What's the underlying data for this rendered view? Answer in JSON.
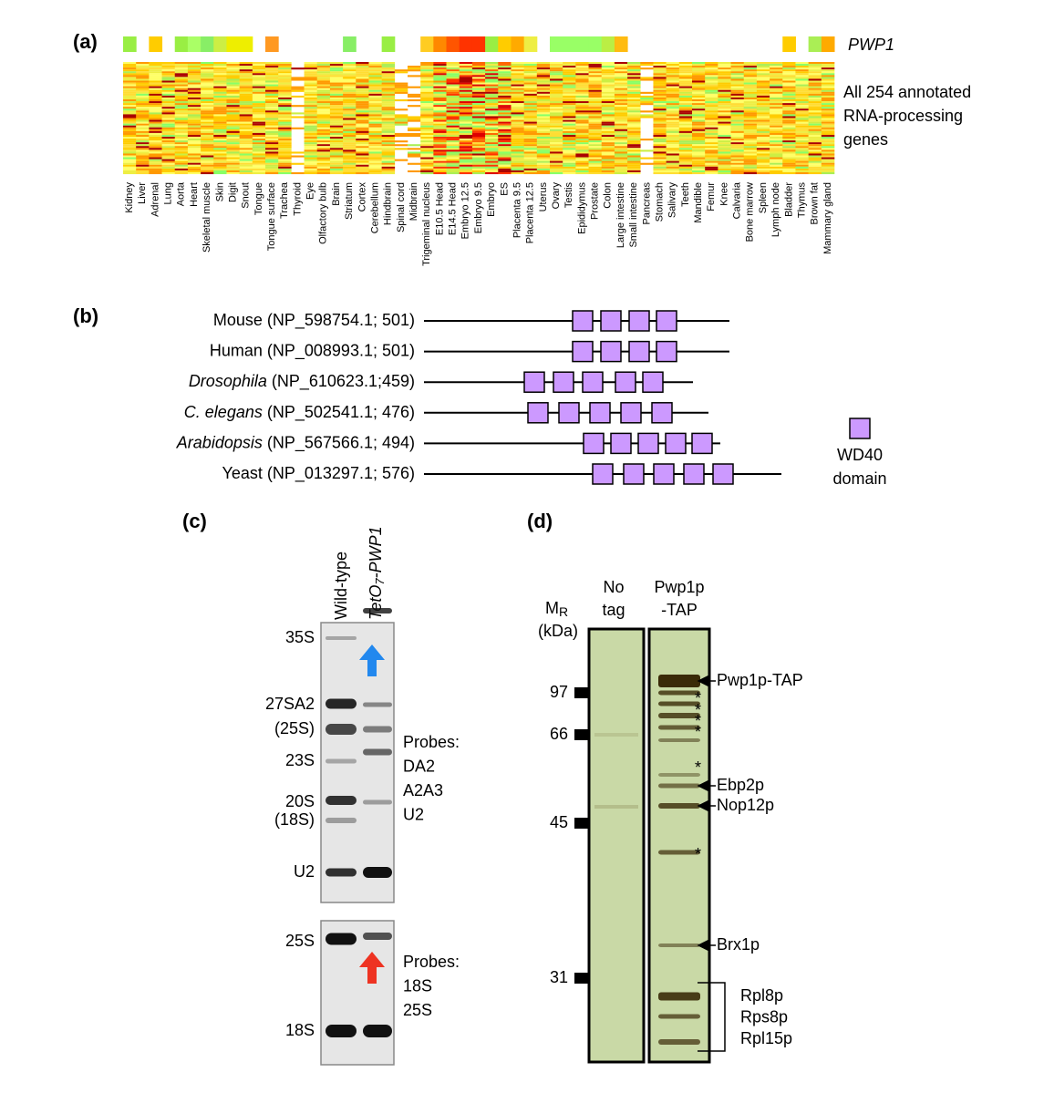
{
  "panel_a": {
    "label": "(a)",
    "gene": "PWP1",
    "caption": [
      "All 254 annotated",
      "RNA-processing",
      "genes"
    ],
    "tissues": [
      "Kidney",
      "Liver",
      "Adrenal",
      "Lung",
      "Aorta",
      "Heart",
      "Skeletal muscle",
      "Skin",
      "Digit",
      "Snout",
      "Tongue",
      "Tongue surface",
      "Trachea",
      "Thyroid",
      "Eye",
      "Olfactory bulb",
      "Brain",
      "Striatum",
      "Cortex",
      "Cerebellum",
      "Hindbrain",
      "Spinal cord",
      "Midbrain",
      "Trigeminal nucleus",
      "E10.5 Head",
      "E14.5 Head",
      "Embryo 12.5",
      "Embryo 9.5",
      "Embryo",
      "ES",
      "Placenta 9.5",
      "Placenta 12.5",
      "Uterus",
      "Ovary",
      "Testis",
      "Epididymus",
      "Prostate",
      "Colon",
      "Large intestine",
      "Small intestine",
      "Pancreas",
      "Stomach",
      "Salivary",
      "Teeth",
      "Mandible",
      "Femur",
      "Knee",
      "Calvaria",
      "Bone marrow",
      "Spleen",
      "Lymph node",
      "Bladder",
      "Thymus",
      "Brown fat",
      "Mammary gland"
    ]
  },
  "panel_b": {
    "label": "(b)",
    "proteins": [
      {
        "species": "Mouse",
        "accession": "(NP_598754.1; 501)"
      },
      {
        "species": "Human",
        "accession": "(NP_008993.1; 501)"
      },
      {
        "species": "Drosophila",
        "accession": "(NP_610623.1;459)"
      },
      {
        "species": "C. elegans",
        "accession": "(NP_502541.1; 476)"
      },
      {
        "species": "Arabidopsis",
        "accession": "(NP_567566.1; 494)"
      },
      {
        "species": "Yeast",
        "accession": "(NP_013297.1; 576)"
      }
    ],
    "legend": [
      "WD40",
      "domain"
    ]
  },
  "panel_c": {
    "label": "(c)",
    "lanes": [
      "Wild-type",
      [
        "TetO",
        "7",
        "-PWP1"
      ]
    ],
    "upper_bands": [
      "35S",
      "27SA2",
      "(25S)",
      "23S",
      "20S",
      "(18S)",
      "U2"
    ],
    "upper_probes": [
      "Probes:",
      "DA2",
      "A2A3",
      "U2"
    ],
    "lower_bands": [
      "25S",
      "18S"
    ],
    "lower_probes": [
      "Probes:",
      "18S",
      "25S"
    ]
  },
  "panel_d": {
    "label": "(d)",
    "mr": [
      "M",
      "R"
    ],
    "unit": "(kDa)",
    "lanes": [
      [
        "No",
        "tag"
      ],
      [
        "Pwp1p",
        "-TAP"
      ]
    ],
    "markers": [
      "97",
      "66",
      "45",
      "31"
    ],
    "proteins": [
      "Pwp1p-TAP",
      "Ebp2p",
      "Nop12p",
      "Brx1p"
    ],
    "bracket": [
      "Rpl8p",
      "Rps8p",
      "Rpl15p"
    ],
    "asterisks": [
      "*",
      "*",
      "*",
      "*",
      "*",
      "*"
    ]
  }
}
